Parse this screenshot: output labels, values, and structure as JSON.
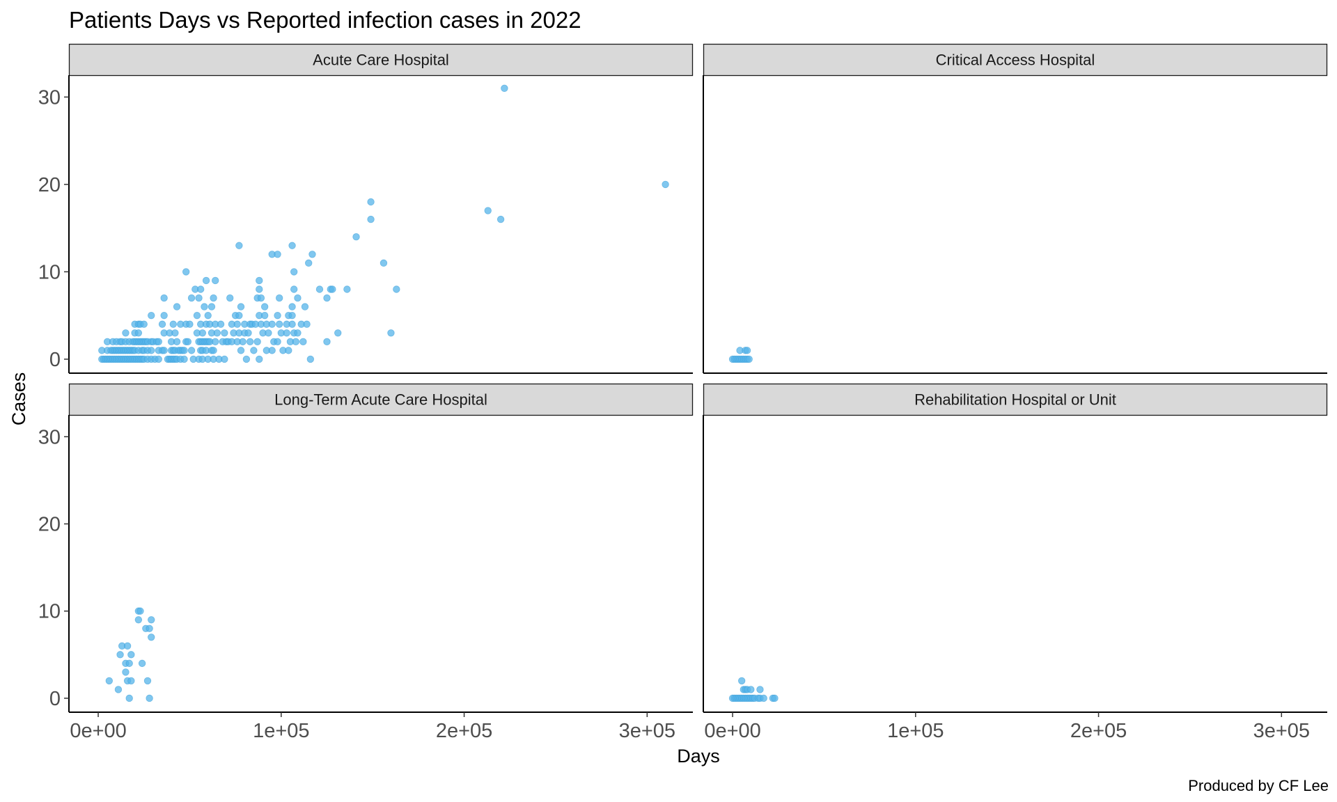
{
  "chart_data": {
    "type": "scatter",
    "title": "Patients Days vs Reported infection cases in 2022",
    "xlabel": "Days",
    "ylabel": "Cases",
    "caption": "Produced by CF Lee",
    "x_ticks": [
      0,
      100000,
      200000,
      300000
    ],
    "x_tick_labels": [
      "0e+00",
      "1e+05",
      "2e+05",
      "3e+05"
    ],
    "y_ticks": [
      0,
      10,
      20,
      30
    ],
    "y_tick_labels": [
      "0",
      "10",
      "20",
      "30"
    ],
    "xlim": [
      -16000,
      325000
    ],
    "ylim": [
      -1.6,
      32.5
    ],
    "point_color": "#56B4E9",
    "panels": [
      {
        "name": "Acute Care Hospital",
        "points": [
          [
            2000,
            0
          ],
          [
            3000,
            0
          ],
          [
            4000,
            0
          ],
          [
            5000,
            0
          ],
          [
            6000,
            0
          ],
          [
            7000,
            0
          ],
          [
            8000,
            0
          ],
          [
            9000,
            0
          ],
          [
            10000,
            0
          ],
          [
            11000,
            0
          ],
          [
            12000,
            0
          ],
          [
            13000,
            0
          ],
          [
            14000,
            0
          ],
          [
            15000,
            0
          ],
          [
            16000,
            0
          ],
          [
            17000,
            0
          ],
          [
            18000,
            0
          ],
          [
            19000,
            0
          ],
          [
            20000,
            0
          ],
          [
            21000,
            0
          ],
          [
            22000,
            0
          ],
          [
            23000,
            0
          ],
          [
            24000,
            0
          ],
          [
            25000,
            0
          ],
          [
            27000,
            0
          ],
          [
            29000,
            0
          ],
          [
            31000,
            0
          ],
          [
            33000,
            0
          ],
          [
            38000,
            0
          ],
          [
            39000,
            0
          ],
          [
            40000,
            0
          ],
          [
            41000,
            0
          ],
          [
            42000,
            0
          ],
          [
            43000,
            0
          ],
          [
            45000,
            0
          ],
          [
            47000,
            0
          ],
          [
            52000,
            0
          ],
          [
            55000,
            0
          ],
          [
            57000,
            0
          ],
          [
            60000,
            0
          ],
          [
            63000,
            0
          ],
          [
            66000,
            0
          ],
          [
            69000,
            0
          ],
          [
            81000,
            0
          ],
          [
            88000,
            0
          ],
          [
            116000,
            0
          ],
          [
            2000,
            1
          ],
          [
            5000,
            1
          ],
          [
            7000,
            1
          ],
          [
            8000,
            1
          ],
          [
            9000,
            1
          ],
          [
            10000,
            1
          ],
          [
            11000,
            1
          ],
          [
            12000,
            1
          ],
          [
            13000,
            1
          ],
          [
            14000,
            1
          ],
          [
            15000,
            1
          ],
          [
            16000,
            1
          ],
          [
            17000,
            1
          ],
          [
            18000,
            1
          ],
          [
            19000,
            1
          ],
          [
            20000,
            1
          ],
          [
            22000,
            1
          ],
          [
            24000,
            1
          ],
          [
            25000,
            1
          ],
          [
            27000,
            1
          ],
          [
            29000,
            1
          ],
          [
            33000,
            1
          ],
          [
            35000,
            1
          ],
          [
            36000,
            1
          ],
          [
            40000,
            1
          ],
          [
            41000,
            1
          ],
          [
            42000,
            1
          ],
          [
            44000,
            1
          ],
          [
            45000,
            1
          ],
          [
            46000,
            1
          ],
          [
            47000,
            1
          ],
          [
            51000,
            1
          ],
          [
            56000,
            1
          ],
          [
            57000,
            1
          ],
          [
            59000,
            1
          ],
          [
            62000,
            1
          ],
          [
            63000,
            1
          ],
          [
            78000,
            1
          ],
          [
            85000,
            1
          ],
          [
            92000,
            1
          ],
          [
            95000,
            1
          ],
          [
            101000,
            1
          ],
          [
            104000,
            1
          ],
          [
            5000,
            2
          ],
          [
            8000,
            2
          ],
          [
            10000,
            2
          ],
          [
            12000,
            2
          ],
          [
            13000,
            2
          ],
          [
            15000,
            2
          ],
          [
            17000,
            2
          ],
          [
            19000,
            2
          ],
          [
            20000,
            2
          ],
          [
            21000,
            2
          ],
          [
            22000,
            2
          ],
          [
            23000,
            2
          ],
          [
            24000,
            2
          ],
          [
            25000,
            2
          ],
          [
            26000,
            2
          ],
          [
            27000,
            2
          ],
          [
            29000,
            2
          ],
          [
            30000,
            2
          ],
          [
            32000,
            2
          ],
          [
            33000,
            2
          ],
          [
            40000,
            2
          ],
          [
            43000,
            2
          ],
          [
            48000,
            2
          ],
          [
            49000,
            2
          ],
          [
            55000,
            2
          ],
          [
            56000,
            2
          ],
          [
            57000,
            2
          ],
          [
            58000,
            2
          ],
          [
            59000,
            2
          ],
          [
            60000,
            2
          ],
          [
            61000,
            2
          ],
          [
            64000,
            2
          ],
          [
            68000,
            2
          ],
          [
            70000,
            2
          ],
          [
            71000,
            2
          ],
          [
            73000,
            2
          ],
          [
            76000,
            2
          ],
          [
            79000,
            2
          ],
          [
            83000,
            2
          ],
          [
            87000,
            2
          ],
          [
            96000,
            2
          ],
          [
            98000,
            2
          ],
          [
            105000,
            2
          ],
          [
            108000,
            2
          ],
          [
            112000,
            2
          ],
          [
            125000,
            2
          ],
          [
            15000,
            3
          ],
          [
            20000,
            3
          ],
          [
            22000,
            3
          ],
          [
            36000,
            3
          ],
          [
            39000,
            3
          ],
          [
            42000,
            3
          ],
          [
            54000,
            3
          ],
          [
            57000,
            3
          ],
          [
            62000,
            3
          ],
          [
            65000,
            3
          ],
          [
            69000,
            3
          ],
          [
            74000,
            3
          ],
          [
            77000,
            3
          ],
          [
            80000,
            3
          ],
          [
            82000,
            3
          ],
          [
            90000,
            3
          ],
          [
            93000,
            3
          ],
          [
            100000,
            3
          ],
          [
            103000,
            3
          ],
          [
            107000,
            3
          ],
          [
            109000,
            3
          ],
          [
            131000,
            3
          ],
          [
            160000,
            3
          ],
          [
            20000,
            4
          ],
          [
            22000,
            4
          ],
          [
            23000,
            4
          ],
          [
            25000,
            4
          ],
          [
            35000,
            4
          ],
          [
            41000,
            4
          ],
          [
            45000,
            4
          ],
          [
            48000,
            4
          ],
          [
            50000,
            4
          ],
          [
            56000,
            4
          ],
          [
            59000,
            4
          ],
          [
            61000,
            4
          ],
          [
            64000,
            4
          ],
          [
            67000,
            4
          ],
          [
            73000,
            4
          ],
          [
            76000,
            4
          ],
          [
            80000,
            4
          ],
          [
            83000,
            4
          ],
          [
            84000,
            4
          ],
          [
            86000,
            4
          ],
          [
            89000,
            4
          ],
          [
            92000,
            4
          ],
          [
            95000,
            4
          ],
          [
            99000,
            4
          ],
          [
            103000,
            4
          ],
          [
            106000,
            4
          ],
          [
            111000,
            4
          ],
          [
            114000,
            4
          ],
          [
            29000,
            5
          ],
          [
            36000,
            5
          ],
          [
            54000,
            5
          ],
          [
            60000,
            5
          ],
          [
            75000,
            5
          ],
          [
            77000,
            5
          ],
          [
            88000,
            5
          ],
          [
            91000,
            5
          ],
          [
            98000,
            5
          ],
          [
            104000,
            5
          ],
          [
            106000,
            5
          ],
          [
            43000,
            6
          ],
          [
            58000,
            6
          ],
          [
            62000,
            6
          ],
          [
            78000,
            6
          ],
          [
            91000,
            6
          ],
          [
            106000,
            6
          ],
          [
            113000,
            6
          ],
          [
            36000,
            7
          ],
          [
            51000,
            7
          ],
          [
            55000,
            7
          ],
          [
            63000,
            7
          ],
          [
            72000,
            7
          ],
          [
            87000,
            7
          ],
          [
            89000,
            7
          ],
          [
            99000,
            7
          ],
          [
            109000,
            7
          ],
          [
            125000,
            7
          ],
          [
            53000,
            8
          ],
          [
            56000,
            8
          ],
          [
            88000,
            8
          ],
          [
            107000,
            8
          ],
          [
            121000,
            8
          ],
          [
            127000,
            8
          ],
          [
            128000,
            8
          ],
          [
            136000,
            8
          ],
          [
            163000,
            8
          ],
          [
            59000,
            9
          ],
          [
            64000,
            9
          ],
          [
            88000,
            9
          ],
          [
            48000,
            10
          ],
          [
            107000,
            10
          ],
          [
            115000,
            11
          ],
          [
            156000,
            11
          ],
          [
            95000,
            12
          ],
          [
            98000,
            12
          ],
          [
            117000,
            12
          ],
          [
            77000,
            13
          ],
          [
            106000,
            13
          ],
          [
            141000,
            14
          ],
          [
            149000,
            16
          ],
          [
            220000,
            16
          ],
          [
            213000,
            17
          ],
          [
            149000,
            18
          ],
          [
            310000,
            20
          ],
          [
            222000,
            31
          ]
        ]
      },
      {
        "name": "Critical Access Hospital",
        "points": [
          [
            0,
            0
          ],
          [
            1000,
            0
          ],
          [
            2000,
            0
          ],
          [
            3000,
            0
          ],
          [
            4000,
            0
          ],
          [
            5000,
            0
          ],
          [
            6000,
            0
          ],
          [
            7000,
            0
          ],
          [
            8000,
            0
          ],
          [
            9000,
            0
          ],
          [
            4000,
            1
          ],
          [
            7000,
            1
          ],
          [
            8000,
            1
          ]
        ]
      },
      {
        "name": "Long-Term Acute Care Hospital",
        "points": [
          [
            6000,
            2
          ],
          [
            11000,
            1
          ],
          [
            12000,
            5
          ],
          [
            13000,
            6
          ],
          [
            15000,
            4
          ],
          [
            15000,
            3
          ],
          [
            16000,
            2
          ],
          [
            16000,
            6
          ],
          [
            17000,
            4
          ],
          [
            17000,
            0
          ],
          [
            18000,
            2
          ],
          [
            18000,
            5
          ],
          [
            22000,
            9
          ],
          [
            22000,
            10
          ],
          [
            23000,
            10
          ],
          [
            24000,
            4
          ],
          [
            26000,
            8
          ],
          [
            27000,
            2
          ],
          [
            28000,
            8
          ],
          [
            28000,
            0
          ],
          [
            29000,
            7
          ],
          [
            29000,
            9
          ]
        ]
      },
      {
        "name": "Rehabilitation Hospital or Unit",
        "points": [
          [
            0,
            0
          ],
          [
            1000,
            0
          ],
          [
            2000,
            0
          ],
          [
            3000,
            0
          ],
          [
            4000,
            0
          ],
          [
            5000,
            0
          ],
          [
            6000,
            0
          ],
          [
            7000,
            0
          ],
          [
            8000,
            0
          ],
          [
            9000,
            0
          ],
          [
            10000,
            0
          ],
          [
            11000,
            0
          ],
          [
            12000,
            0
          ],
          [
            14000,
            0
          ],
          [
            15000,
            0
          ],
          [
            17000,
            0
          ],
          [
            22000,
            0
          ],
          [
            23000,
            0
          ],
          [
            5000,
            2
          ],
          [
            6000,
            1
          ],
          [
            7000,
            1
          ],
          [
            8000,
            1
          ],
          [
            10000,
            1
          ],
          [
            15000,
            1
          ]
        ]
      }
    ]
  }
}
